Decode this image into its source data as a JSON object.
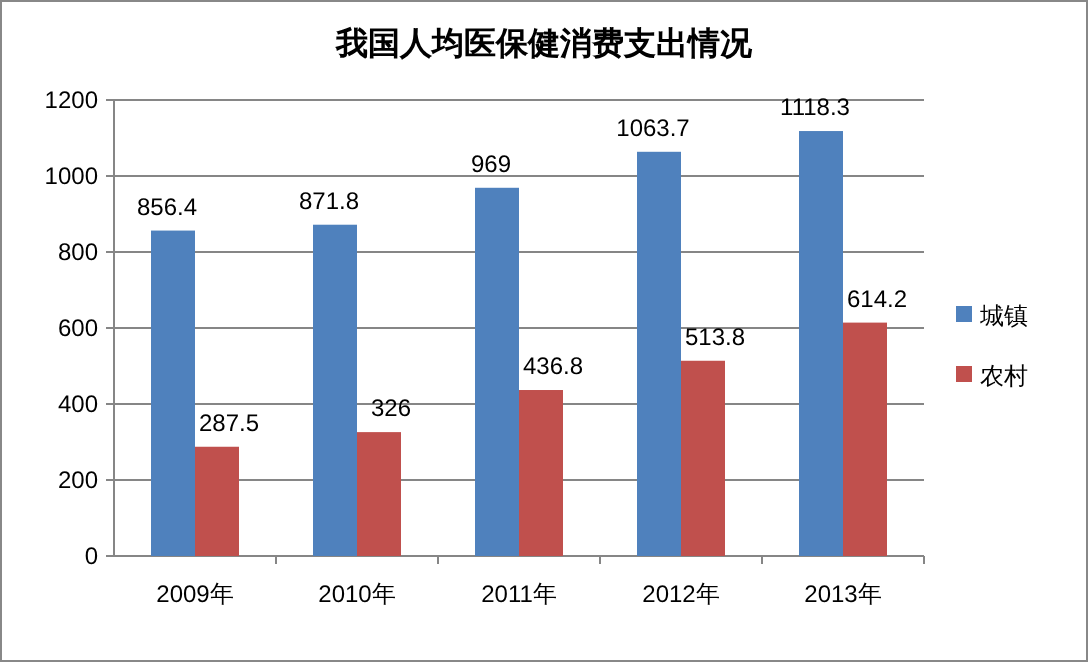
{
  "chart_data": {
    "type": "bar",
    "title": "我国人均医保健消费支出情况",
    "categories": [
      "2009年",
      "2010年",
      "2011年",
      "2012年",
      "2013年"
    ],
    "series": [
      {
        "name": "城镇",
        "color": "#4f81bd",
        "values": [
          856.4,
          871.8,
          969,
          1063.7,
          1118.3
        ]
      },
      {
        "name": "农村",
        "color": "#c0504d",
        "values": [
          287.5,
          326,
          436.8,
          513.8,
          614.2
        ]
      }
    ],
    "ylim": [
      0,
      1200
    ],
    "yticks": [
      0,
      200,
      400,
      600,
      800,
      1000,
      1200
    ],
    "grid": "y",
    "legend": "right",
    "data_labels": true
  }
}
